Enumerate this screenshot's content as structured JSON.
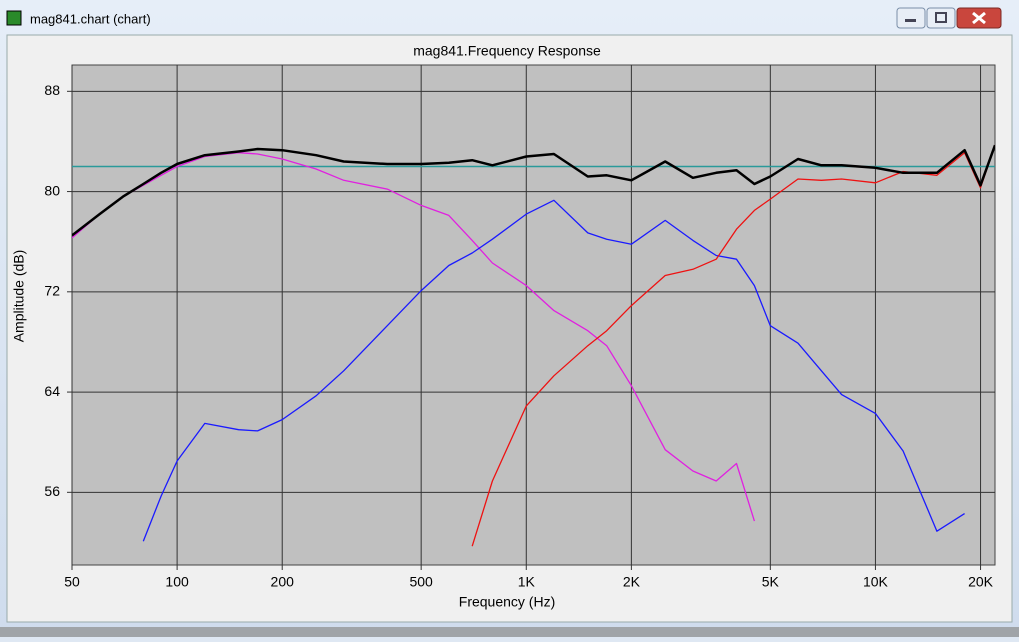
{
  "window": {
    "title": "mag841.chart (chart)"
  },
  "chart_data": {
    "type": "line",
    "title": "mag841.Frequency Response",
    "x_label": "Frequency (Hz)",
    "y_label": "Amplitude (dB)",
    "xscale": "log",
    "grid": true,
    "background": "#c0c0c0",
    "xlim": [
      50,
      22000
    ],
    "ylim": [
      50.2,
      90.1
    ],
    "xticks": [
      50,
      100,
      200,
      500,
      {
        "value": 1000,
        "label": "1K"
      },
      {
        "value": 2000,
        "label": "2K"
      },
      {
        "value": 5000,
        "label": "5K"
      },
      {
        "value": 10000,
        "label": "10K"
      },
      {
        "value": 20000,
        "label": "20K"
      }
    ],
    "yticks": [
      56,
      64,
      72,
      80,
      88
    ],
    "reference_line": {
      "value": 82,
      "color": "#2a9a9a"
    },
    "x": [
      50,
      60,
      70,
      80,
      90,
      100,
      120,
      150,
      170,
      200,
      250,
      300,
      400,
      500,
      600,
      700,
      800,
      1000,
      1200,
      1500,
      1700,
      2000,
      2500,
      3000,
      3500,
      4000,
      4500,
      5000,
      6000,
      7000,
      8000,
      10000,
      12000,
      15000,
      18000,
      20000,
      22000
    ],
    "series": [
      {
        "color": "#e020e0",
        "values": [
          76.3,
          78.2,
          79.6,
          80.5,
          81.3,
          82.0,
          82.8,
          83.1,
          83.0,
          82.6,
          81.8,
          80.9,
          80.2,
          78.9,
          78.1,
          76.1,
          74.3,
          72.5,
          70.5,
          68.9,
          67.7,
          64.5,
          59.4,
          57.7,
          56.9,
          58.3,
          53.7,
          null,
          null,
          null,
          null,
          null,
          null,
          null,
          null,
          null,
          null
        ]
      },
      {
        "color": "#1a1aff",
        "values": [
          null,
          null,
          null,
          52.1,
          55.7,
          58.5,
          61.5,
          61.0,
          60.9,
          61.8,
          63.7,
          65.7,
          69.3,
          72.1,
          74.1,
          75.1,
          76.2,
          78.2,
          79.3,
          76.7,
          76.2,
          75.8,
          77.7,
          76.1,
          74.9,
          74.6,
          72.5,
          69.3,
          67.9,
          65.7,
          63.8,
          62.3,
          59.3,
          52.9,
          54.3,
          null,
          null
        ]
      },
      {
        "color": "#ee1111",
        "values": [
          null,
          null,
          null,
          null,
          null,
          null,
          null,
          null,
          null,
          null,
          null,
          null,
          null,
          null,
          null,
          51.7,
          56.9,
          62.9,
          65.3,
          67.7,
          68.9,
          70.9,
          73.3,
          73.8,
          74.6,
          77.0,
          78.5,
          79.4,
          81.0,
          80.9,
          81.0,
          80.7,
          81.6,
          81.3,
          83.1,
          80.3,
          83.7
        ]
      },
      {
        "color": "#000000",
        "values": [
          76.5,
          78.2,
          79.6,
          80.6,
          81.5,
          82.2,
          82.9,
          83.2,
          83.4,
          83.3,
          82.9,
          82.4,
          82.2,
          82.2,
          82.3,
          82.5,
          82.1,
          82.8,
          83.0,
          81.2,
          81.3,
          80.9,
          82.4,
          81.1,
          81.5,
          81.7,
          80.6,
          81.2,
          82.6,
          82.1,
          82.1,
          81.9,
          81.5,
          81.5,
          83.3,
          80.5,
          83.7
        ]
      }
    ]
  }
}
